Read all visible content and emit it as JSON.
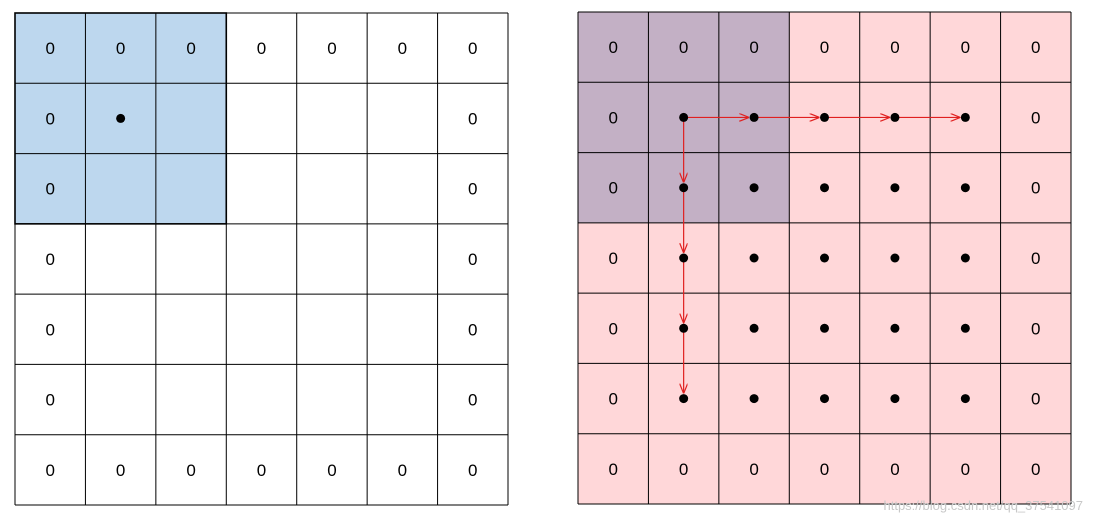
{
  "grid_size": 7,
  "zero_label": "0",
  "watermark": "https://blog.csdn.net/qq_37541097",
  "colors": {
    "line": "#000000",
    "left_highlight": "#bdd7ee",
    "right_background": "#ffd7d9",
    "right_overlap": "#c3b0c5",
    "arrow": "#e02020",
    "dot": "#000000"
  },
  "left_grid": {
    "highlight_block_cells": 3,
    "dot_cell": [
      1,
      1
    ]
  },
  "right_grid": {
    "overlap_block_cells": 3,
    "dot_cells_range": [
      1,
      5
    ],
    "arrow_start_cell": [
      1,
      1
    ],
    "arrow_horizontal_end_col": 5,
    "arrow_vertical_end_row": 5
  }
}
